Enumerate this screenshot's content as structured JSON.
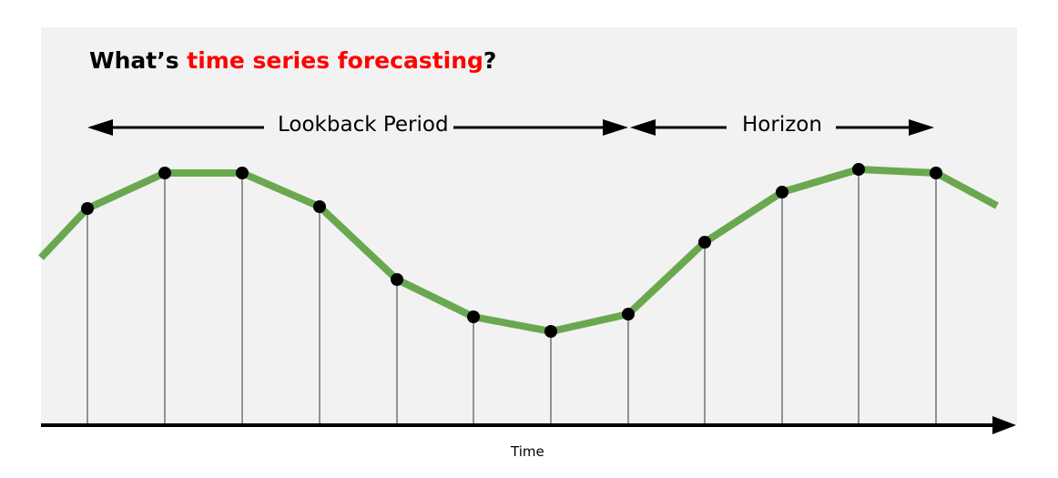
{
  "title": {
    "prefix": "What’s ",
    "highlight": "time series forecasting",
    "suffix": "?"
  },
  "lookback_label": "Lookback Period",
  "horizon_label": "Horizon",
  "axis_label": "Time",
  "colors": {
    "panel": "#f2f2f2",
    "line": "#6aa84f",
    "highlight": "#ff0000",
    "points": "#000000"
  },
  "series": {
    "points": 12,
    "lookback_points": 8,
    "horizon_points": 4
  }
}
